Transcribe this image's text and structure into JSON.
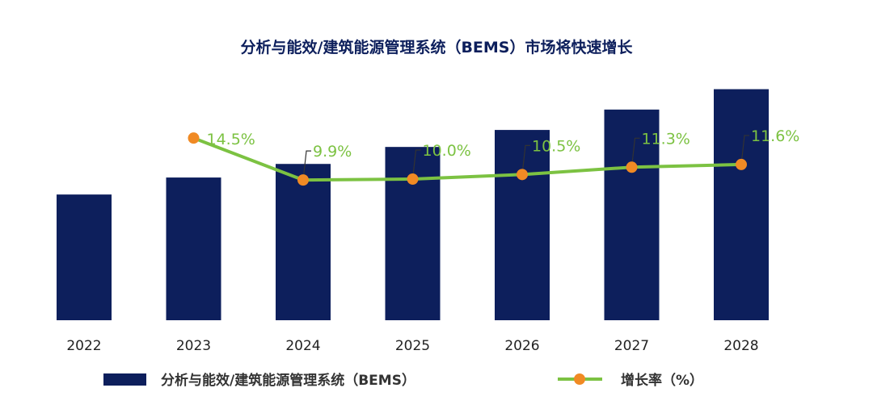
{
  "chart_data": {
    "type": "bar",
    "title": "分析与能效/建筑能源管理系统（BEMS）市场将快速增长",
    "categories": [
      "2022",
      "2023",
      "2024",
      "2025",
      "2026",
      "2027",
      "2028"
    ],
    "series": [
      {
        "name": "分析与能效/建筑能源管理系统（BEMS）",
        "type": "bar",
        "values": [
          37,
          42,
          46,
          51,
          56,
          62,
          68
        ],
        "color": "#0d1f5c"
      },
      {
        "name": "增长率（%）",
        "type": "line",
        "values": [
          null,
          14.5,
          9.9,
          10.0,
          10.5,
          11.3,
          11.6
        ],
        "labels": [
          "",
          "14.5%",
          "9.9%",
          "10.0%",
          "10.5%",
          "11.3%",
          "11.6%"
        ],
        "color": "#7cc242",
        "marker_color": "#f08a24"
      }
    ],
    "ylim": [
      0,
      80
    ],
    "grid": false,
    "legend_position": "bottom"
  }
}
